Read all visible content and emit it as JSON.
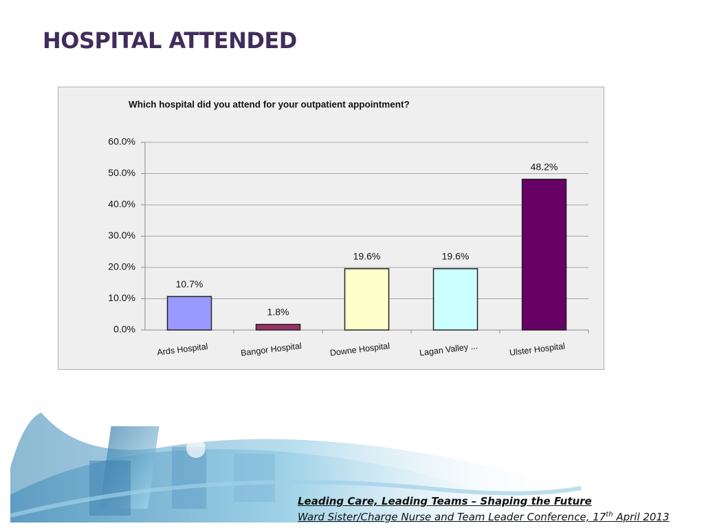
{
  "slide_title": "HOSPITAL ATTENDED",
  "chart_data": {
    "type": "bar",
    "title": "Which hospital did you attend for your outpatient appointment?",
    "categories": [
      "Ards Hospital",
      "Bangor Hospital",
      "Downe Hospital",
      "Lagan Valley ...",
      "Ulster Hospital"
    ],
    "values": [
      10.7,
      1.8,
      19.6,
      19.6,
      48.2
    ],
    "value_labels": [
      "10.7%",
      "1.8%",
      "19.6%",
      "19.6%",
      "48.2%"
    ],
    "colors": [
      "#9999ff",
      "#993366",
      "#ffffcc",
      "#ccffff",
      "#660066"
    ],
    "ylim": [
      0,
      60
    ],
    "yticks": [
      {
        "value": 0,
        "label": "0.0%"
      },
      {
        "value": 10,
        "label": "10.0%"
      },
      {
        "value": 20,
        "label": "20.0%"
      },
      {
        "value": 30,
        "label": "30.0%"
      },
      {
        "value": 40,
        "label": "40.0%"
      },
      {
        "value": 50,
        "label": "50.0%"
      },
      {
        "value": 60,
        "label": "60.0%"
      }
    ],
    "grid": true
  },
  "footer": {
    "line1": "Leading Care, Leading Teams – Shaping the Future",
    "line2": [
      "Ward Sister/Charge Nurse and Team Leader Conference, 17",
      "th",
      " April 2013"
    ]
  }
}
